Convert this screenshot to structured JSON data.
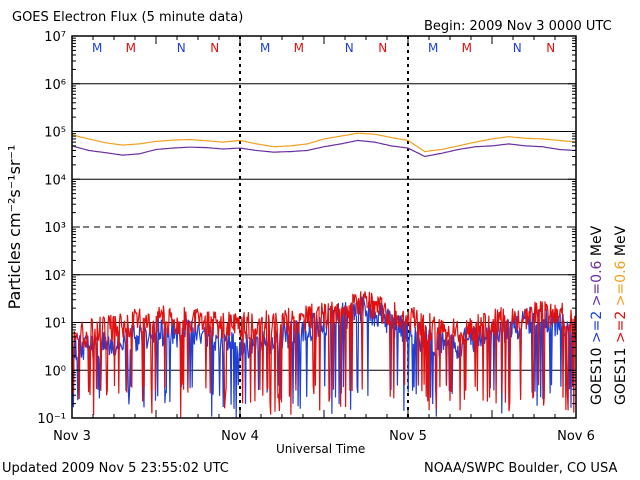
{
  "header": {
    "title": "GOES Electron Flux (5 minute data)",
    "begin": "Begin: 2009 Nov 3 0000 UTC"
  },
  "footer": {
    "updated": "Updated 2009 Nov  5 23:55:02 UTC",
    "credit": "NOAA/SWPC Boulder, CO USA"
  },
  "chart_data": {
    "type": "line",
    "title": "GOES Electron Flux (5 minute data)",
    "xlabel": "Universal Time",
    "ylabel": "Particles cm⁻²s⁻¹sr⁻¹",
    "yscale": "log",
    "ylim": [
      0.1,
      10000000
    ],
    "xlim": [
      0,
      3
    ],
    "x_ticks": [
      "Nov 3",
      "Nov 4",
      "Nov 5",
      "Nov 6"
    ],
    "y_ticks": [
      "10⁻¹",
      "10⁰",
      "10¹",
      "10²",
      "10³",
      "10⁴",
      "10⁵",
      "10⁶",
      "10⁷"
    ],
    "dashed_levels": [
      1000
    ],
    "marker_rows": [
      {
        "day": 0,
        "labels": [
          {
            "text": "M",
            "pos": 0.15,
            "color": "#1f3fd6"
          },
          {
            "text": "M",
            "pos": 0.35,
            "color": "#e01010"
          },
          {
            "text": "N",
            "pos": 0.65,
            "color": "#1f3fd6"
          },
          {
            "text": "N",
            "pos": 0.85,
            "color": "#e01010"
          }
        ]
      },
      {
        "day": 1,
        "labels": [
          {
            "text": "M",
            "pos": 0.15,
            "color": "#1f3fd6"
          },
          {
            "text": "M",
            "pos": 0.35,
            "color": "#e01010"
          },
          {
            "text": "N",
            "pos": 0.65,
            "color": "#1f3fd6"
          },
          {
            "text": "N",
            "pos": 0.85,
            "color": "#e01010"
          }
        ]
      },
      {
        "day": 2,
        "labels": [
          {
            "text": "M",
            "pos": 0.15,
            "color": "#1f3fd6"
          },
          {
            "text": "M",
            "pos": 0.35,
            "color": "#e01010"
          },
          {
            "text": "N",
            "pos": 0.65,
            "color": "#1f3fd6"
          },
          {
            "text": "N",
            "pos": 0.85,
            "color": "#e01010"
          }
        ]
      }
    ],
    "right_legend": [
      {
        "label": "GOES10",
        "items": [
          {
            "text": ">=2",
            "color": "#1f3fd6"
          },
          {
            "text": ">=0.6",
            "color": "#6a2fa0"
          }
        ]
      },
      {
        "label": "GOES11",
        "items": [
          {
            "text": ">=2",
            "color": "#e01010"
          },
          {
            "text": ">=0.6",
            "color": "#f0a020"
          }
        ]
      }
    ],
    "units": "MeV",
    "series": [
      {
        "name": "GOES10 >=0.6",
        "color": "#6a2fa0",
        "style": "smooth",
        "x": [
          0,
          0.1,
          0.2,
          0.3,
          0.4,
          0.5,
          0.6,
          0.7,
          0.8,
          0.9,
          1.0,
          1.1,
          1.2,
          1.3,
          1.4,
          1.5,
          1.6,
          1.7,
          1.8,
          1.9,
          2.0,
          2.1,
          2.2,
          2.3,
          2.4,
          2.5,
          2.6,
          2.7,
          2.8,
          2.9,
          3.0
        ],
        "y": [
          50000,
          40000,
          36000,
          32000,
          34000,
          42000,
          45000,
          47000,
          46000,
          43000,
          45000,
          40000,
          37000,
          38000,
          40000,
          48000,
          55000,
          65000,
          60000,
          50000,
          45000,
          30000,
          35000,
          42000,
          48000,
          50000,
          55000,
          50000,
          48000,
          42000,
          40000
        ]
      },
      {
        "name": "GOES11 >=0.6",
        "color": "#f0a020",
        "style": "smooth",
        "x": [
          0,
          0.1,
          0.2,
          0.3,
          0.4,
          0.5,
          0.6,
          0.7,
          0.8,
          0.9,
          1.0,
          1.1,
          1.2,
          1.3,
          1.4,
          1.5,
          1.6,
          1.7,
          1.8,
          1.9,
          2.0,
          2.1,
          2.2,
          2.3,
          2.4,
          2.5,
          2.6,
          2.7,
          2.8,
          2.9,
          3.0
        ],
        "y": [
          85000,
          70000,
          58000,
          52000,
          55000,
          62000,
          66000,
          68000,
          64000,
          60000,
          65000,
          55000,
          48000,
          50000,
          55000,
          70000,
          80000,
          92000,
          88000,
          75000,
          65000,
          38000,
          42000,
          50000,
          60000,
          70000,
          78000,
          72000,
          70000,
          65000,
          60000
        ]
      },
      {
        "name": "GOES10 >=2",
        "color": "#1f3fd6",
        "style": "noisy",
        "x": [
          0,
          0.25,
          0.5,
          0.75,
          1.0,
          1.25,
          1.5,
          1.75,
          2.0,
          2.25,
          2.5,
          2.75,
          3.0
        ],
        "y": [
          3,
          4,
          6,
          6,
          3,
          5,
          10,
          20,
          6,
          3,
          6,
          12,
          8
        ]
      },
      {
        "name": "GOES11 >=2",
        "color": "#e01010",
        "style": "noisy",
        "x": [
          0,
          0.25,
          0.5,
          0.75,
          1.0,
          1.25,
          1.5,
          1.75,
          2.0,
          2.25,
          2.5,
          2.75,
          3.0
        ],
        "y": [
          5,
          8,
          12,
          10,
          8,
          10,
          14,
          25,
          12,
          6,
          10,
          15,
          12
        ]
      }
    ]
  }
}
